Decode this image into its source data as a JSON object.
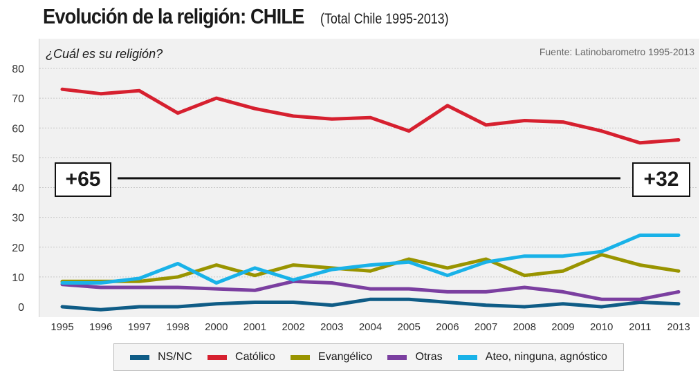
{
  "title": "Evolución de la religión: CHILE",
  "subtitle": "(Total Chile 1995-2013)",
  "question": "¿Cuál es su religión?",
  "source": "Fuente: Latinobarometro 1995-2013",
  "notes": {
    "left": "+65",
    "right": "+32"
  },
  "chart_data": {
    "type": "line",
    "categories": [
      "1995",
      "1996",
      "1997",
      "1998",
      "2000",
      "2001",
      "2002",
      "2003",
      "2004",
      "2005",
      "2006",
      "2007",
      "2008",
      "2009",
      "2010",
      "2011",
      "2013"
    ],
    "y_ticks": [
      "0",
      "10",
      "20",
      "30",
      "40",
      "50",
      "60",
      "70",
      "80"
    ],
    "ylim": [
      0,
      80
    ],
    "grid": true,
    "legend_position": "bottom",
    "series": [
      {
        "name": "NS/NC",
        "color": "#0f5c86",
        "values": [
          0,
          -1,
          0,
          0,
          1,
          1.5,
          1.5,
          0.5,
          2.5,
          2.5,
          1.5,
          0.5,
          0,
          1,
          0,
          1.5,
          1
        ]
      },
      {
        "name": "Católico",
        "color": "#d6202f",
        "values": [
          73,
          71.5,
          72.5,
          65,
          70,
          66.5,
          64,
          63,
          63.5,
          59,
          67.5,
          61,
          62.5,
          62,
          59,
          55,
          56
        ]
      },
      {
        "name": "Evangélico",
        "color": "#999400",
        "values": [
          8.5,
          8.5,
          8.5,
          10,
          14,
          10.5,
          14,
          13,
          12,
          16,
          13,
          16,
          10.5,
          12,
          17.5,
          14,
          12
        ]
      },
      {
        "name": "Otras",
        "color": "#7b3fa0",
        "values": [
          7.5,
          6.5,
          6.5,
          6.5,
          6,
          5.5,
          8.5,
          8,
          6,
          6,
          5,
          5,
          6.5,
          5,
          2.5,
          2.5,
          5
        ]
      },
      {
        "name": "Ateo, ninguna, agnóstico",
        "color": "#19b2e8",
        "values": [
          8,
          8,
          9.5,
          14.5,
          8,
          13,
          9,
          12.5,
          14,
          15,
          10.5,
          15,
          17,
          17,
          18.5,
          24,
          24
        ]
      }
    ]
  }
}
